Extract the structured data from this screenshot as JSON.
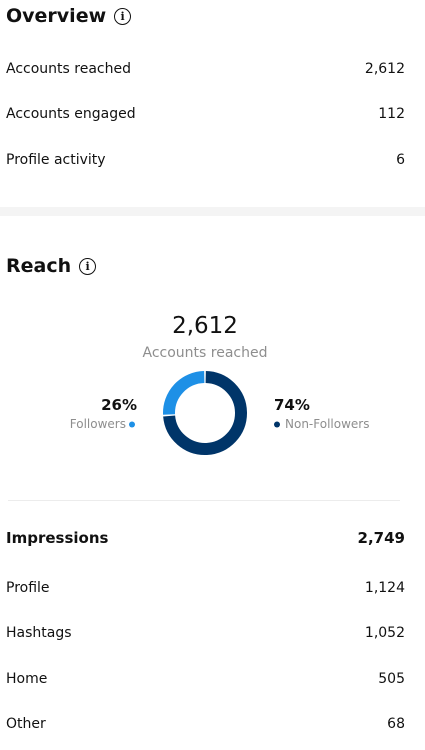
{
  "overview": {
    "title": "Overview",
    "rows": [
      {
        "label": "Accounts reached",
        "value": "2,612"
      },
      {
        "label": "Accounts engaged",
        "value": "112"
      },
      {
        "label": "Profile activity",
        "value": "6"
      }
    ]
  },
  "reach": {
    "title": "Reach",
    "total": "2,612",
    "total_label": "Accounts reached"
  },
  "chart_data": {
    "type": "donut",
    "categories": [
      "Followers",
      "Non-Followers"
    ],
    "values": [
      26,
      74
    ],
    "value_labels": [
      "26%",
      "74%"
    ],
    "colors": [
      "#1e90e6",
      "#003569"
    ]
  },
  "impressions": {
    "title": "Impressions",
    "total": "2,749",
    "rows": [
      {
        "label": "Profile",
        "value": "1,124"
      },
      {
        "label": "Hashtags",
        "value": "1,052"
      },
      {
        "label": "Home",
        "value": "505"
      },
      {
        "label": "Other",
        "value": "68"
      }
    ]
  }
}
